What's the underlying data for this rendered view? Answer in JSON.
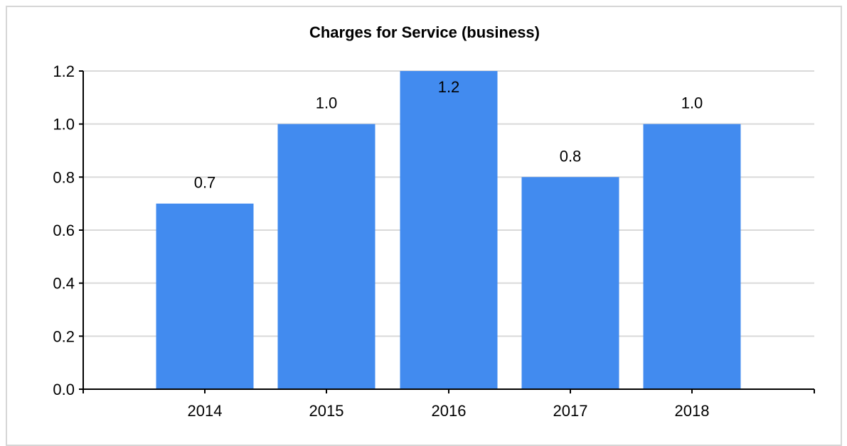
{
  "chart_data": {
    "type": "bar",
    "title": "Charges for Service (business)",
    "categories": [
      "2014",
      "2015",
      "2016",
      "2017",
      "2018"
    ],
    "values": [
      0.7,
      1.0,
      1.2,
      0.8,
      1.0
    ],
    "data_labels": [
      "0.7",
      "1.0",
      "1.2",
      "0.8",
      "1.0"
    ],
    "y_ticks": [
      "0.0",
      "0.2",
      "0.4",
      "0.6",
      "0.8",
      "1.0",
      "1.2"
    ],
    "ylim": [
      0,
      1.2
    ],
    "grid": true,
    "bar_color": "#428bef",
    "gridline_color": "#d9d9d9"
  }
}
